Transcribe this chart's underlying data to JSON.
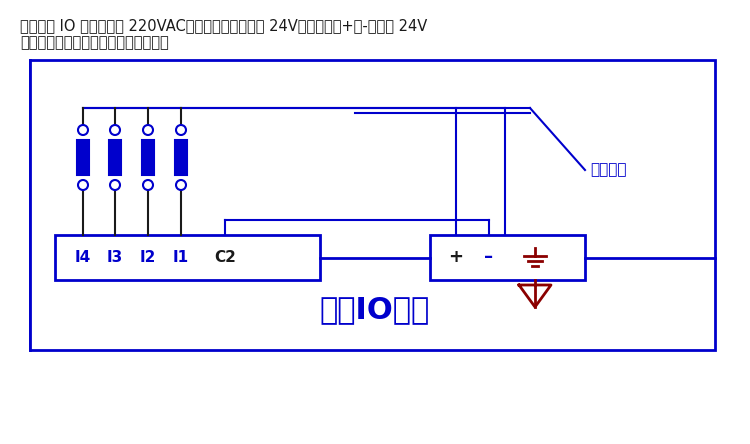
{
  "title_line1": "如果无线 IO 模块供电是 220VAC，开关量输入通道是 24V，则可使用+、-端输出 24V",
  "title_line2": "直流给开关量输入通道供电，如下图：",
  "module_label": "无线IO模块",
  "terminal_labels": [
    "I4",
    "I3",
    "I2",
    "I1",
    "C2"
  ],
  "cable_label": "屏蔽电缆",
  "blue": "#0000CC",
  "dark_red": "#8B0000",
  "black": "#1a1a1a",
  "white": "#FFFFFF",
  "bg": "#FFFFFF"
}
